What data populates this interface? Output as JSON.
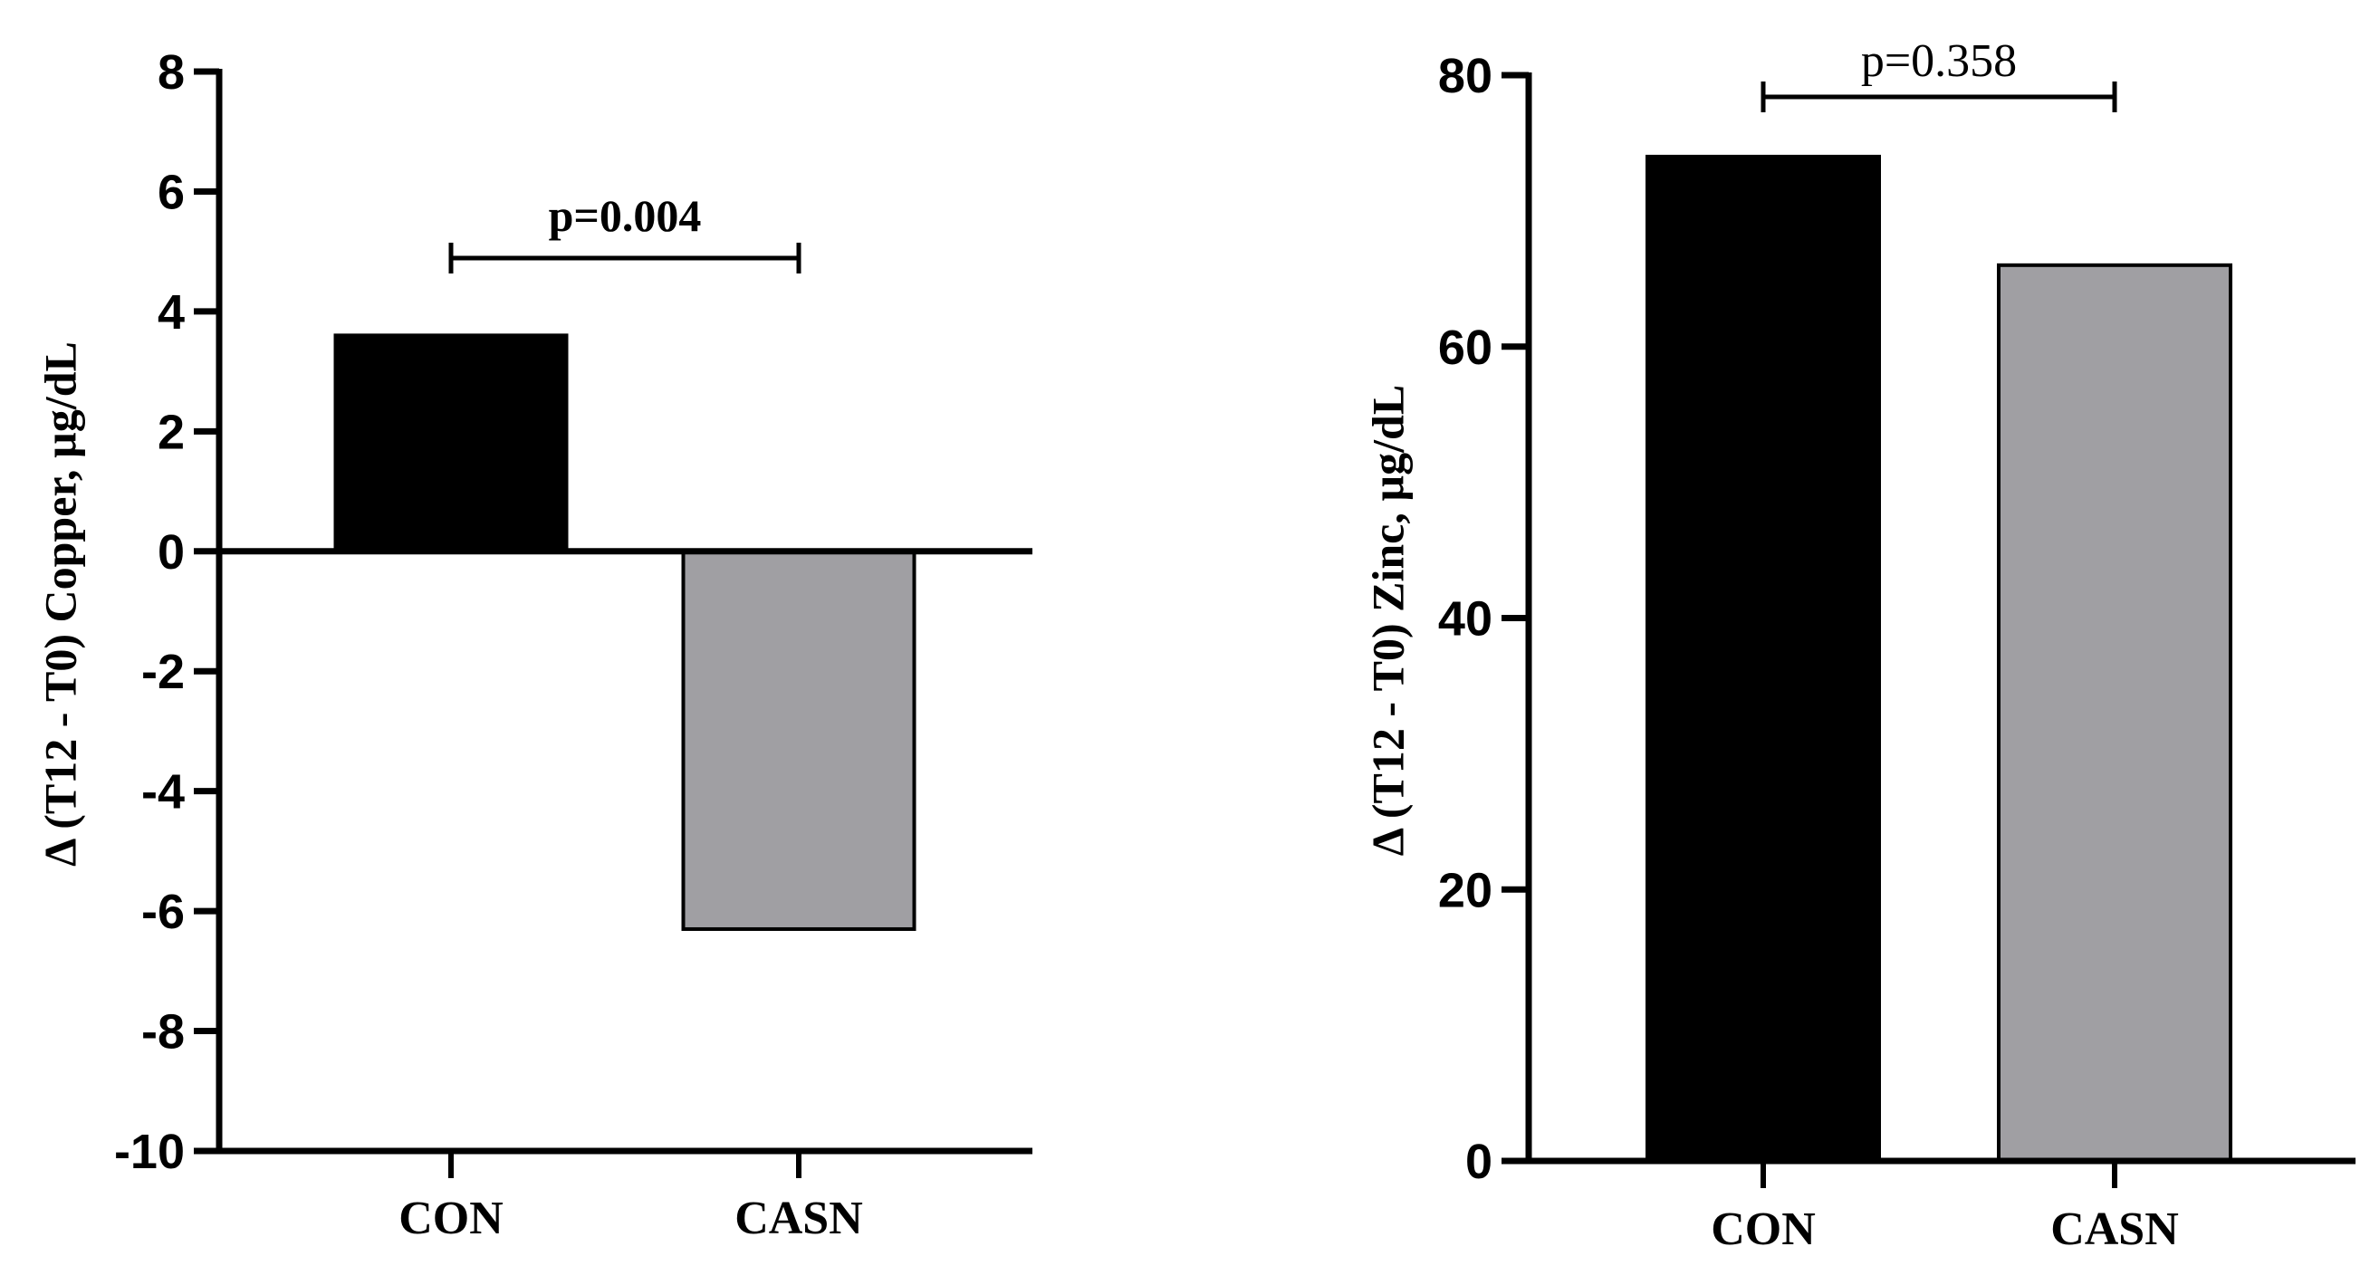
{
  "chart_data": [
    {
      "type": "bar",
      "title": "",
      "xlabel": "",
      "ylabel": "Δ (T12 - T0) Copper, µg/dL",
      "categories": [
        "CON",
        "CASN"
      ],
      "values": [
        3.6,
        -6.3
      ],
      "colors": [
        "#000000",
        "#a09fa3"
      ],
      "ylim": [
        -10,
        8
      ],
      "yticks": [
        8,
        6,
        4,
        2,
        0,
        -2,
        -4,
        -6,
        -8,
        -10
      ],
      "grid": false,
      "legend": null,
      "annotation": {
        "text": "p=0.004",
        "from": "CON",
        "to": "CASN",
        "bold": true
      }
    },
    {
      "type": "bar",
      "title": "",
      "xlabel": "",
      "ylabel": "Δ (T12 - T0) Zinc, µg/dL",
      "categories": [
        "CON",
        "CASN"
      ],
      "values": [
        74,
        66
      ],
      "colors": [
        "#000000",
        "#a09fa3"
      ],
      "ylim": [
        0,
        80
      ],
      "yticks": [
        80,
        60,
        40,
        20,
        0
      ],
      "grid": false,
      "legend": null,
      "annotation": {
        "text": "p=0.358",
        "from": "CON",
        "to": "CASN",
        "bold": false
      }
    }
  ]
}
